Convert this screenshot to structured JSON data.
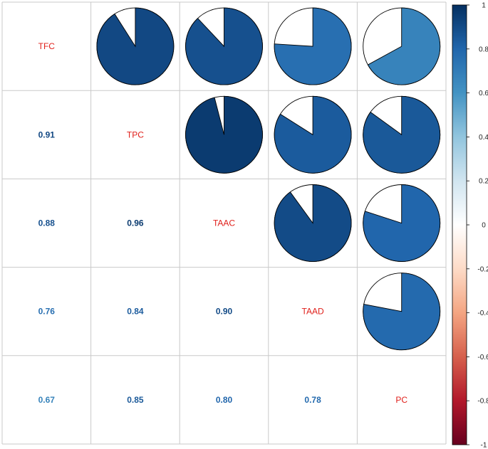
{
  "chart_data": {
    "type": "correlation-matrix",
    "variables": [
      "TFC",
      "TPC",
      "TAAC",
      "TAAD",
      "PC"
    ],
    "matrix": [
      [
        1.0,
        0.91,
        0.88,
        0.76,
        0.67
      ],
      [
        0.91,
        1.0,
        0.96,
        0.84,
        0.85
      ],
      [
        0.88,
        0.96,
        1.0,
        0.9,
        0.8
      ],
      [
        0.76,
        0.84,
        0.9,
        1.0,
        0.78
      ],
      [
        0.67,
        0.85,
        0.8,
        0.78,
        1.0
      ]
    ],
    "upper_method": "pie",
    "lower_method": "number",
    "diagonal": "variable-name",
    "colorbar": {
      "range": [
        -1,
        1
      ],
      "ticks": [
        "1",
        "0.8",
        "0.6",
        "0.4",
        "0.2",
        "0",
        "-0.2",
        "-0.4",
        "-0.6",
        "-0.8",
        "-1"
      ],
      "tick_values": [
        1,
        0.8,
        0.6,
        0.4,
        0.2,
        0,
        -0.2,
        -0.4,
        -0.6,
        -0.8,
        -1
      ],
      "palette": [
        "#67001F",
        "#B2182B",
        "#D6604D",
        "#F4A582",
        "#FDDBC7",
        "#FFFFFF",
        "#D1E5F0",
        "#92C5DE",
        "#4393C3",
        "#2166AC",
        "#053061"
      ]
    },
    "label_color": "#E0201B",
    "grid": true
  }
}
